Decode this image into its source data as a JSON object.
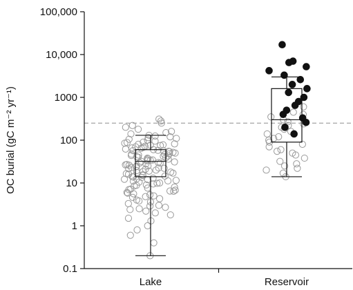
{
  "chart_data": {
    "type": "box-scatter",
    "title": "",
    "xlabel": "",
    "ylabel": "OC burial (gC m⁻² yr⁻¹)",
    "yscale": "log",
    "ylim": [
      0.1,
      100000
    ],
    "yticks": [
      {
        "value": 0.1,
        "label": "0.1"
      },
      {
        "value": 1,
        "label": "1"
      },
      {
        "value": 10,
        "label": "10"
      },
      {
        "value": 100,
        "label": "100"
      },
      {
        "value": 1000,
        "label": "1000"
      },
      {
        "value": 10000,
        "label": "10,000"
      },
      {
        "value": 100000,
        "label": "100,000"
      }
    ],
    "categories": [
      "Lake",
      "Reservoir"
    ],
    "reference_line": {
      "value": 250,
      "style": "dashed",
      "color": "#999999"
    },
    "boxes": [
      {
        "category": "Lake",
        "whisker_low": 0.2,
        "q1": 14,
        "median": 32,
        "q3": 60,
        "whisker_high": 130
      },
      {
        "category": "Reservoir",
        "whisker_low": 14,
        "q1": 90,
        "median": 300,
        "q3": 1600,
        "whisker_high": 3000
      }
    ],
    "series": [
      {
        "category": "Lake",
        "marker": "open-circle",
        "color": "#9a9a9a",
        "values": [
          0.2,
          0.4,
          0.6,
          0.8,
          1.0,
          1.3,
          1.5,
          1.8,
          2.0,
          2.2,
          2.5,
          2.7,
          3.0,
          3.3,
          3.6,
          4.0,
          4.3,
          4.6,
          5.0,
          5.3,
          5.6,
          6.0,
          6.4,
          6.8,
          7.2,
          7.6,
          8.0,
          8.5,
          9.0,
          9.5,
          10,
          10.5,
          11,
          11.5,
          12,
          12.5,
          13,
          13.5,
          14,
          14.5,
          15,
          15.5,
          16,
          17,
          17.5,
          18,
          19,
          19.5,
          20,
          21,
          22,
          22.5,
          23,
          24,
          25,
          26,
          27,
          28,
          29,
          30,
          31,
          32,
          33,
          34,
          35,
          36,
          37,
          38,
          40,
          41,
          42,
          44,
          45,
          46,
          48,
          50,
          52,
          54,
          56,
          58,
          60,
          62,
          65,
          68,
          70,
          72,
          75,
          78,
          80,
          82,
          85,
          90,
          95,
          100,
          105,
          110,
          115,
          120,
          125,
          130,
          140,
          150,
          160,
          180,
          200,
          220,
          250,
          280,
          310,
          6.5,
          8.8,
          11.2,
          13.8,
          16.5,
          21.5,
          26.5,
          34.5,
          43,
          55,
          66,
          76,
          88,
          3.8,
          2.9,
          5.8,
          18.5,
          24.5,
          29.5,
          39,
          47,
          57,
          12.2,
          9.8,
          7.0,
          4.8,
          2.4
        ]
      },
      {
        "category": "Reservoir",
        "marker": "open-circle",
        "color": "#9a9a9a",
        "values": [
          14,
          17,
          20,
          22,
          25,
          28,
          32,
          38,
          45,
          50,
          55,
          60,
          70,
          80,
          90,
          100,
          110,
          120,
          140,
          160,
          180,
          200,
          220,
          240,
          270,
          300,
          350,
          400,
          450,
          500,
          600
        ]
      },
      {
        "category": "Reservoir",
        "marker": "filled-circle",
        "color": "#111111",
        "values": [
          140,
          200,
          260,
          330,
          400,
          500,
          650,
          800,
          1000,
          1300,
          1600,
          2000,
          2600,
          3300,
          4200,
          5200,
          6500,
          7000,
          17000
        ]
      }
    ]
  }
}
